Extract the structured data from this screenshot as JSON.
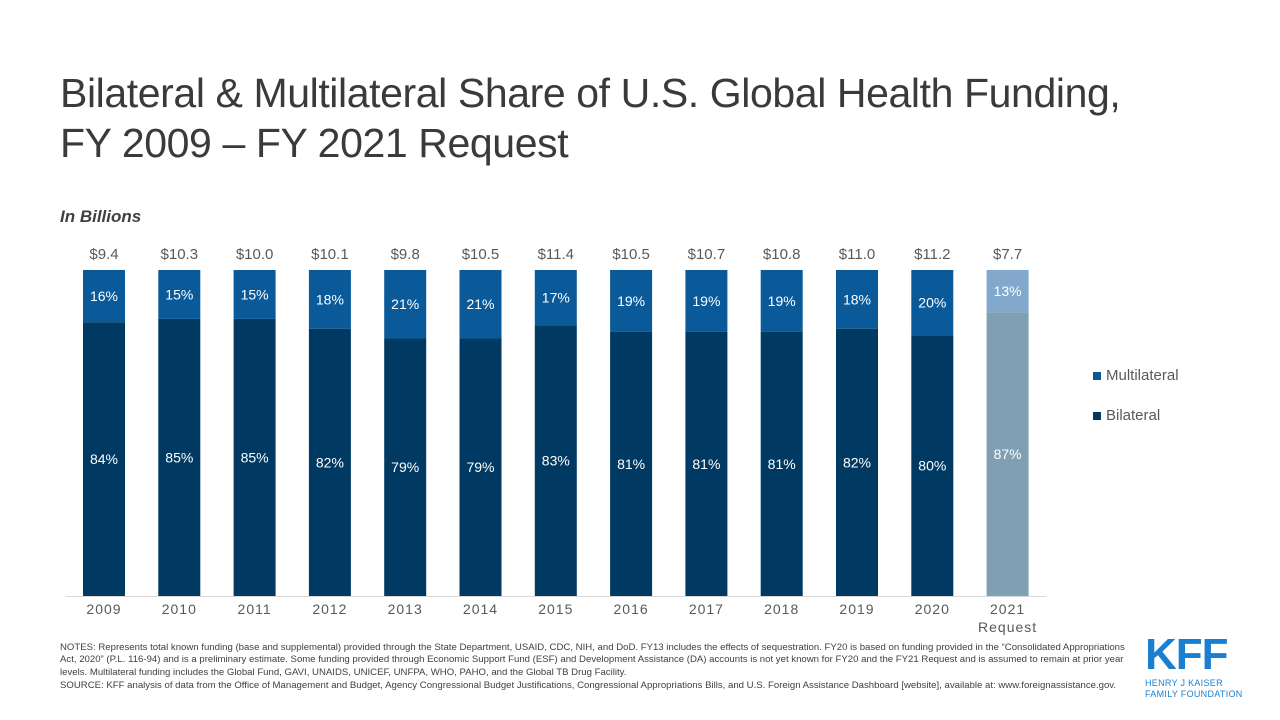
{
  "title_line1": "Bilateral & Multilateral Share of U.S. Global Health Funding,",
  "title_line2": "FY 2009 – FY 2021 Request",
  "unit_label": "In Billions",
  "colors": {
    "multilateral": "#0a5a9a",
    "bilateral": "#003a62",
    "multilateral_request": "#82a9cb",
    "bilateral_request": "#7f9fb3"
  },
  "chart_data": {
    "type": "bar",
    "stacked": true,
    "normalized": true,
    "categories": [
      "2009",
      "2010",
      "2011",
      "2012",
      "2013",
      "2014",
      "2015",
      "2016",
      "2017",
      "2018",
      "2019",
      "2020",
      "2021\nRequest"
    ],
    "category_labels": [
      [
        "2009"
      ],
      [
        "2010"
      ],
      [
        "2011"
      ],
      [
        "2012"
      ],
      [
        "2013"
      ],
      [
        "2014"
      ],
      [
        "2015"
      ],
      [
        "2016"
      ],
      [
        "2017"
      ],
      [
        "2018"
      ],
      [
        "2019"
      ],
      [
        "2020"
      ],
      [
        "2021",
        "Request"
      ]
    ],
    "totals": [
      "$9.4",
      "$10.3",
      "$10.0",
      "$10.1",
      "$9.8",
      "$10.5",
      "$11.4",
      "$10.5",
      "$10.7",
      "$10.8",
      "$11.0",
      "$11.2",
      "$7.7"
    ],
    "series": [
      {
        "name": "Bilateral",
        "values": [
          84,
          85,
          85,
          82,
          79,
          79,
          83,
          81,
          81,
          81,
          82,
          80,
          87
        ]
      },
      {
        "name": "Multilateral",
        "values": [
          16,
          15,
          15,
          18,
          21,
          21,
          17,
          19,
          19,
          19,
          18,
          20,
          13
        ]
      }
    ],
    "ylim": [
      0,
      100
    ],
    "grid": false,
    "legend": "right",
    "legend_entries": [
      "Multilateral",
      "Bilateral"
    ]
  },
  "notes": "NOTES:  Represents total known funding (base and supplemental) provided through the State Department, USAID, CDC, NIH, and DoD. FY13 includes the effects of sequestration. FY20 is based on funding provided in the “Consolidated Appropriations Act, 2020” (P.L. 116-94) and is a preliminary estimate. Some funding provided through Economic Support Fund (ESF) and Development Assistance (DA) accounts is not yet known for FY20 and the FY21 Request and is assumed to remain at prior year levels. Multilateral funding includes the Global Fund, GAVI, UNAIDS, UNICEF, UNFPA, WHO, PAHO, and the Global TB Drug Facility.",
  "source": "SOURCE:  KFF analysis of data from the Office of Management and Budget, Agency Congressional Budget Justifications, Congressional Appropriations Bills, and U.S. Foreign Assistance Dashboard [website], available at: www.foreignassistance.gov.",
  "logo": {
    "mark": "KFF",
    "line1": "HENRY J KAISER",
    "line2": "FAMILY FOUNDATION"
  }
}
